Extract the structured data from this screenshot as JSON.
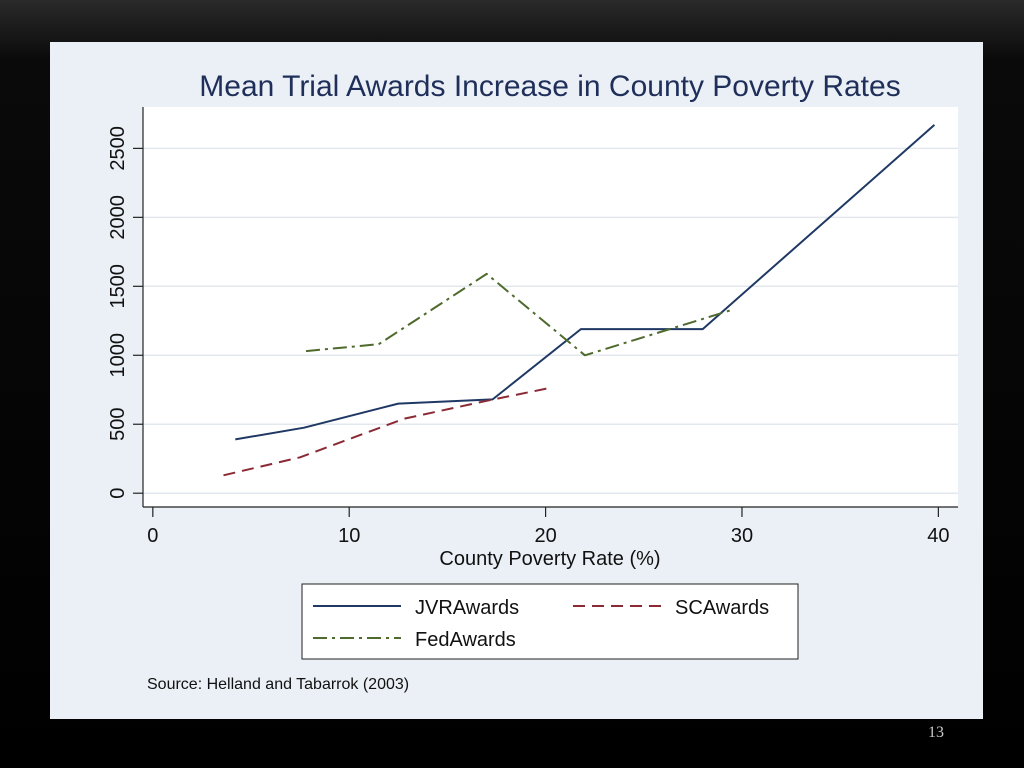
{
  "slide": {
    "page_number": "13"
  },
  "chart_data": {
    "type": "line",
    "title": "Mean Trial Awards Increase in County Poverty Rates",
    "xlabel": "County Poverty Rate (%)",
    "ylabel": "",
    "xlim": [
      -0.5,
      41
    ],
    "ylim": [
      -100,
      2800
    ],
    "xticks": [
      "0",
      "10",
      "20",
      "30",
      "40"
    ],
    "yticks": [
      "0",
      "500",
      "1000",
      "1500",
      "2000",
      "2500"
    ],
    "grid": true,
    "source": "Source: Helland and Tabarrok (2003)",
    "series": [
      {
        "name": "JVRAwards",
        "color": "#1f3864",
        "dash": "solid",
        "points": [
          [
            4.2,
            390
          ],
          [
            7.7,
            475
          ],
          [
            12.5,
            650
          ],
          [
            17.3,
            680
          ],
          [
            21.8,
            1190
          ],
          [
            28,
            1190
          ],
          [
            39.8,
            2670
          ]
        ]
      },
      {
        "name": "SCAwards",
        "color": "#8b2a35",
        "dash": "dashed",
        "points": [
          [
            3.6,
            130
          ],
          [
            7.5,
            260
          ],
          [
            12.8,
            540
          ],
          [
            17,
            670
          ],
          [
            20.1,
            760
          ]
        ]
      },
      {
        "name": "FedAwards",
        "color": "#4f6a2d",
        "dash": "dashdot",
        "points": [
          [
            7.8,
            1030
          ],
          [
            11.5,
            1080
          ],
          [
            17,
            1590
          ],
          [
            22,
            1000
          ],
          [
            29.5,
            1330
          ]
        ]
      }
    ]
  }
}
